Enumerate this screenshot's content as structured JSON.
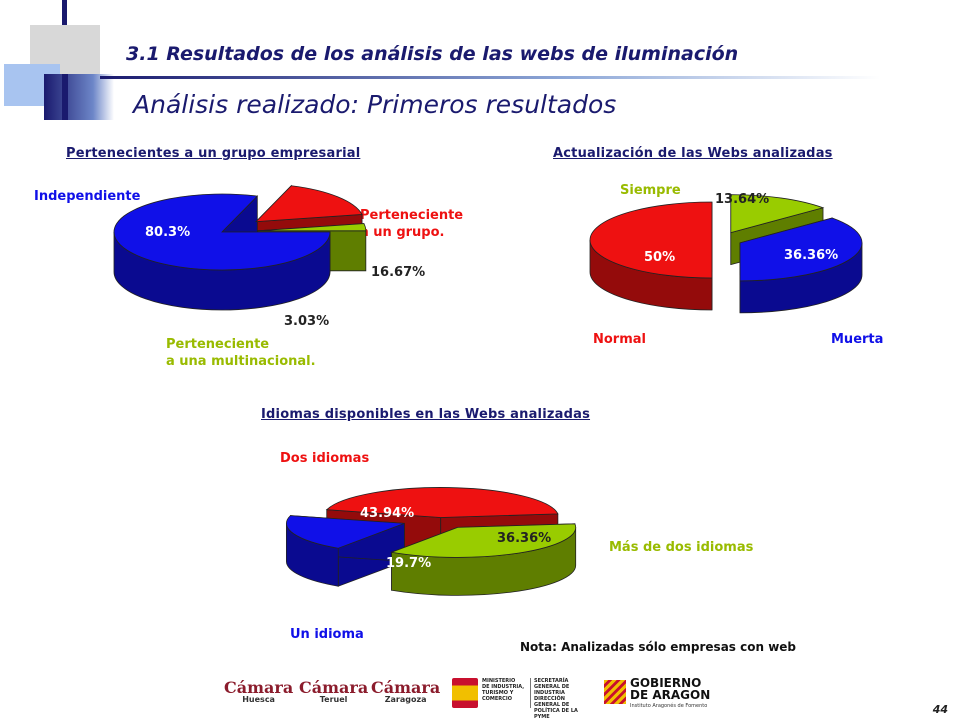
{
  "header": {
    "section_title": "3.1 Resultados de  los análisis de las webs de iluminación",
    "subtitle": "Análisis realizado: Primeros resultados"
  },
  "chart_data": [
    {
      "type": "pie",
      "title": "Pertenecientes a un grupo empresarial",
      "slices": [
        {
          "label": "Independiente",
          "value": 80.3,
          "value_label": "80.3%",
          "color": "#1010e8"
        },
        {
          "label": "Perteneciente a un grupo.",
          "value": 16.67,
          "value_label": "16.67%",
          "color": "#ee1111"
        },
        {
          "label": "Perteneciente a una multinacional.",
          "value": 3.03,
          "value_label": "3.03%",
          "color": "#99cc00"
        }
      ]
    },
    {
      "type": "pie",
      "title": "Actualización de las Webs analizadas",
      "slices": [
        {
          "label": "Normal",
          "value": 50,
          "value_label": "50%",
          "color": "#ee1111"
        },
        {
          "label": "Siempre",
          "value": 13.64,
          "value_label": "13.64%",
          "color": "#99cc00"
        },
        {
          "label": "Muerta",
          "value": 36.36,
          "value_label": "36.36%",
          "color": "#1010e8"
        }
      ]
    },
    {
      "type": "pie",
      "title": "Idiomas disponibles en las Webs analizadas",
      "slices": [
        {
          "label": "Dos idiomas",
          "value": 43.94,
          "value_label": "43.94%",
          "color": "#ee1111"
        },
        {
          "label": "Más de dos idiomas",
          "value": 36.36,
          "value_label": "36.36%",
          "color": "#99cc00"
        },
        {
          "label": "Un idioma",
          "value": 19.7,
          "value_label": "19.7%",
          "color": "#1010e8"
        }
      ]
    }
  ],
  "chart1": {
    "label_independiente": "Independiente",
    "label_grupo_1": "Perteneciente",
    "label_grupo_2": "a un grupo.",
    "label_multi_1": "Perteneciente",
    "label_multi_2": "a una multinacional."
  },
  "chart3": {
    "label_dos": "Dos idiomas",
    "label_mas": "Más de dos idiomas",
    "label_un": "Un idioma"
  },
  "note": "Nota: Analizadas sólo empresas con web",
  "page_number": "44",
  "footer": {
    "camara_word": "Cámara",
    "camara_cities": [
      "Huesca",
      "Teruel",
      "Zaragoza"
    ],
    "ministerio_lines": [
      "MINISTERIO",
      "DE INDUSTRIA,",
      "TURISMO Y",
      "COMERCIO"
    ],
    "secretaria_lines": [
      "SECRETARÍA GENERAL DE",
      "INDUSTRIA",
      "DIRECCIÓN GENERAL DE",
      "POLÍTICA DE LA PYME"
    ],
    "gobierno_line1": "GOBIERNO",
    "gobierno_line2": "DE ARAGON",
    "gobierno_sub": "Instituto Aragonés de Fomento"
  },
  "colors": {
    "navy": "#1a1a6e",
    "blue": "#1010e8",
    "red": "#ee1111",
    "green": "#99cc00"
  }
}
